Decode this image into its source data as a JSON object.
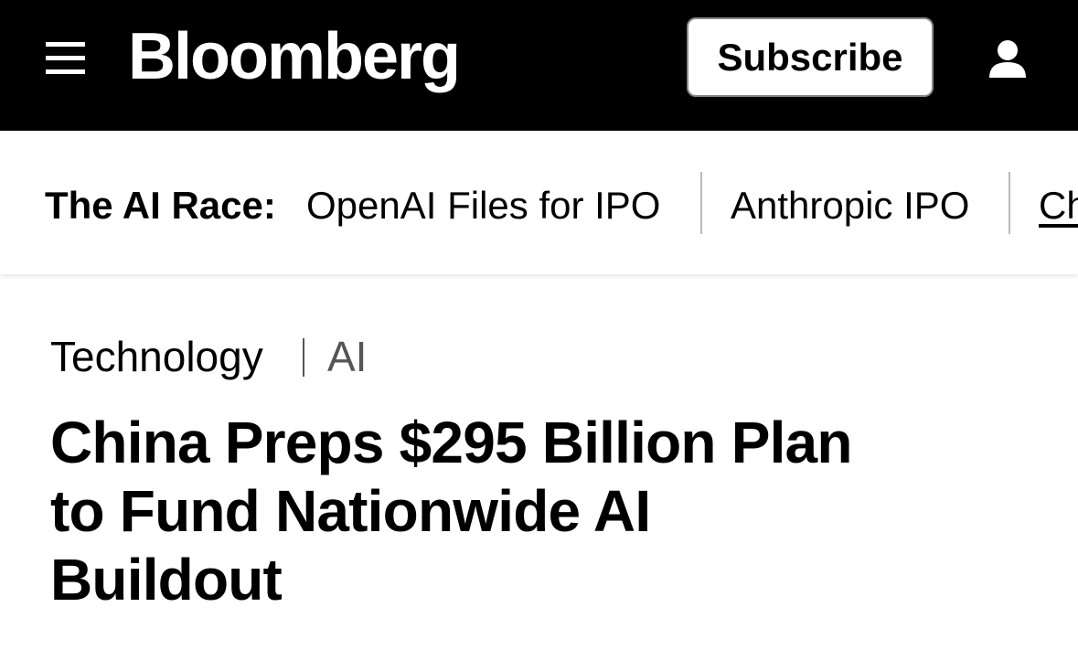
{
  "header": {
    "logo": "Bloomberg",
    "subscribe": "Subscribe"
  },
  "topic_bar": {
    "label": "The AI Race:",
    "links": [
      "OpenAI Files for IPO",
      "Anthropic IPO",
      "Ch"
    ]
  },
  "article": {
    "section": "Technology",
    "subsection": "AI",
    "headline_lines": [
      "China Preps $295 Billion Plan",
      "to Fund Nationwide AI",
      "Buildout"
    ]
  }
}
